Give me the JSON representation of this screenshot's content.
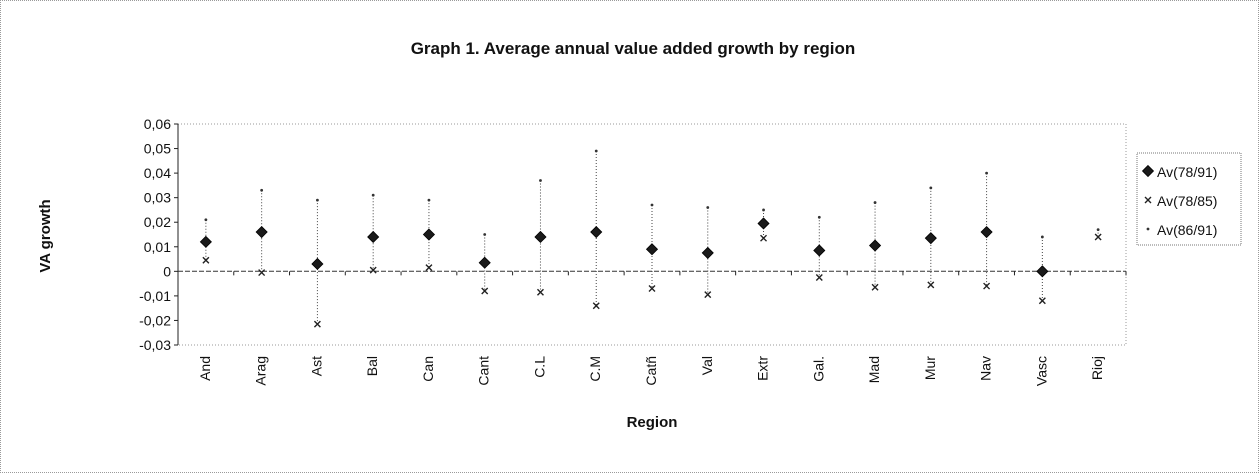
{
  "chart_data": {
    "type": "scatter",
    "title": "Graph 1. Average annual value added growth by region",
    "xlabel": "Region",
    "ylabel": "VA growth",
    "categories": [
      "And",
      "Arag",
      "Ast",
      "Bal",
      "Can",
      "Cant",
      "C.L",
      "C.M",
      "Catñ",
      "Val",
      "Extr",
      "Gal.",
      "Mad",
      "Mur",
      "Nav",
      "Vasc",
      "Rioj"
    ],
    "ylim": [
      -0.03,
      0.06
    ],
    "yticks": [
      "0,06",
      "0,05",
      "0,04",
      "0,03",
      "0,02",
      "0,01",
      "0",
      "-0,01",
      "-0,02",
      "-0,03"
    ],
    "legend_position": "right",
    "series": [
      {
        "name": "Av(78/91)",
        "marker": "diamond-filled",
        "color": "#222222",
        "values": [
          0.012,
          0.016,
          0.003,
          0.014,
          0.015,
          0.0035,
          0.014,
          0.016,
          0.009,
          0.0075,
          0.0195,
          0.0085,
          0.0105,
          0.0135,
          0.016,
          0.0,
          null
        ]
      },
      {
        "name": "Av(78/85)",
        "marker": "x",
        "color": "#222222",
        "values": [
          0.0045,
          -0.0005,
          -0.0215,
          0.0005,
          0.0015,
          -0.008,
          -0.0085,
          -0.014,
          -0.007,
          -0.0095,
          0.0135,
          -0.0025,
          -0.0065,
          -0.0055,
          -0.006,
          -0.012,
          0.014
        ]
      },
      {
        "name": "Av(86/91)",
        "marker": "dot",
        "color": "#222222",
        "values": [
          0.021,
          0.033,
          0.029,
          0.031,
          0.029,
          0.015,
          0.037,
          0.049,
          0.027,
          0.026,
          0.025,
          0.022,
          0.028,
          0.034,
          0.04,
          0.014,
          0.017
        ]
      }
    ]
  }
}
